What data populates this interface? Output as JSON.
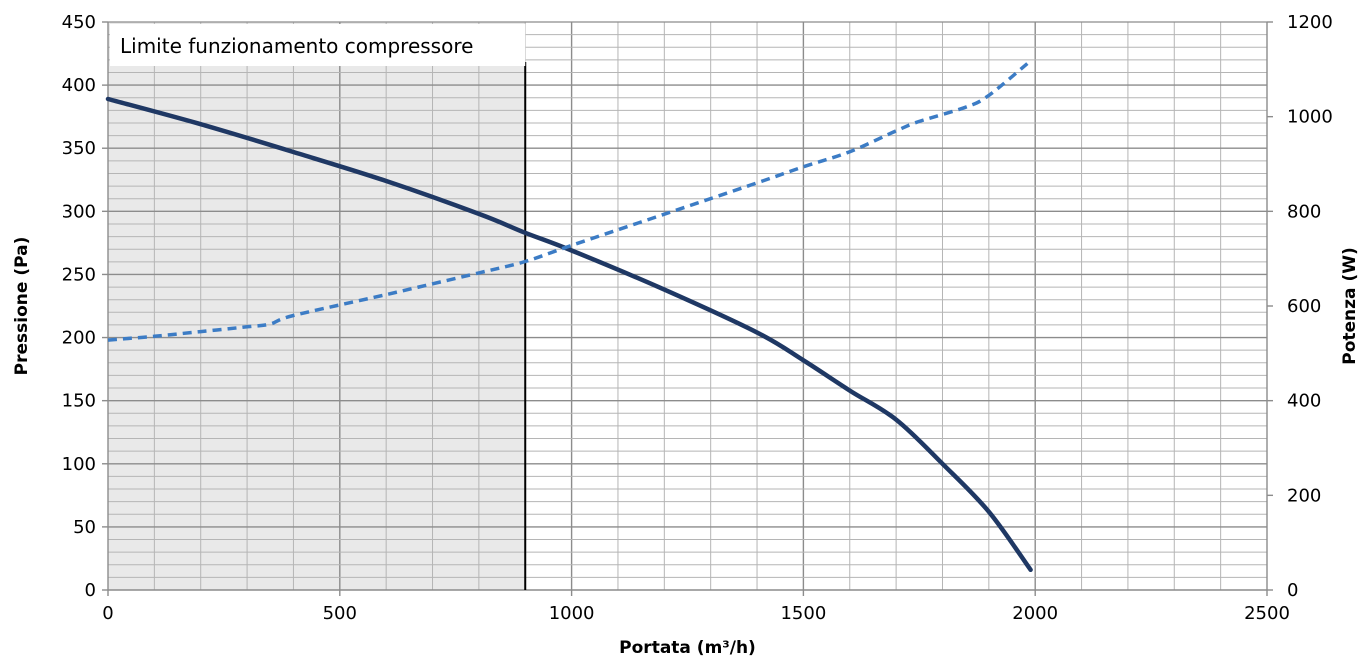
{
  "chart_data": {
    "type": "line",
    "title": "",
    "xlabel": "Portata (m³/h)",
    "ylabel_left": "Pressione (Pa)",
    "ylabel_right": "Potenza (W)",
    "xlim": [
      0,
      2500
    ],
    "ylim_left": [
      0,
      450
    ],
    "ylim_right": [
      0,
      1200
    ],
    "x_ticks": [
      0,
      500,
      1000,
      1500,
      2000,
      2500
    ],
    "y_ticks_left": [
      0,
      50,
      100,
      150,
      200,
      250,
      300,
      350,
      400,
      450
    ],
    "y_ticks_right": [
      0,
      200,
      400,
      600,
      800,
      1000,
      1200
    ],
    "grid": true,
    "shaded_region": {
      "x_from": 0,
      "x_to": 900,
      "label": "Limite funzionamento compressore"
    },
    "series": [
      {
        "axis": "left",
        "style": "solid",
        "color": "#1f3864",
        "points": [
          [
            0,
            389
          ],
          [
            200,
            369
          ],
          [
            400,
            347
          ],
          [
            600,
            324
          ],
          [
            800,
            298
          ],
          [
            900,
            283
          ],
          [
            1000,
            269
          ],
          [
            1200,
            238
          ],
          [
            1400,
            204
          ],
          [
            1500,
            182
          ],
          [
            1600,
            158
          ],
          [
            1700,
            135
          ],
          [
            1800,
            100
          ],
          [
            1900,
            62
          ],
          [
            1990,
            16
          ]
        ]
      },
      {
        "axis": "right",
        "style": "dashed",
        "color": "#3c7cc5",
        "points": [
          [
            0,
            528
          ],
          [
            100,
            536
          ],
          [
            200,
            546
          ],
          [
            300,
            556
          ],
          [
            350,
            562
          ],
          [
            400,
            580
          ],
          [
            600,
            624
          ],
          [
            800,
            670
          ],
          [
            900,
            694
          ],
          [
            1000,
            728
          ],
          [
            1200,
            794
          ],
          [
            1400,
            860
          ],
          [
            1500,
            894
          ],
          [
            1600,
            926
          ],
          [
            1700,
            970
          ],
          [
            1750,
            990
          ],
          [
            1850,
            1020
          ],
          [
            1900,
            1045
          ],
          [
            1990,
            1118
          ]
        ]
      }
    ]
  }
}
